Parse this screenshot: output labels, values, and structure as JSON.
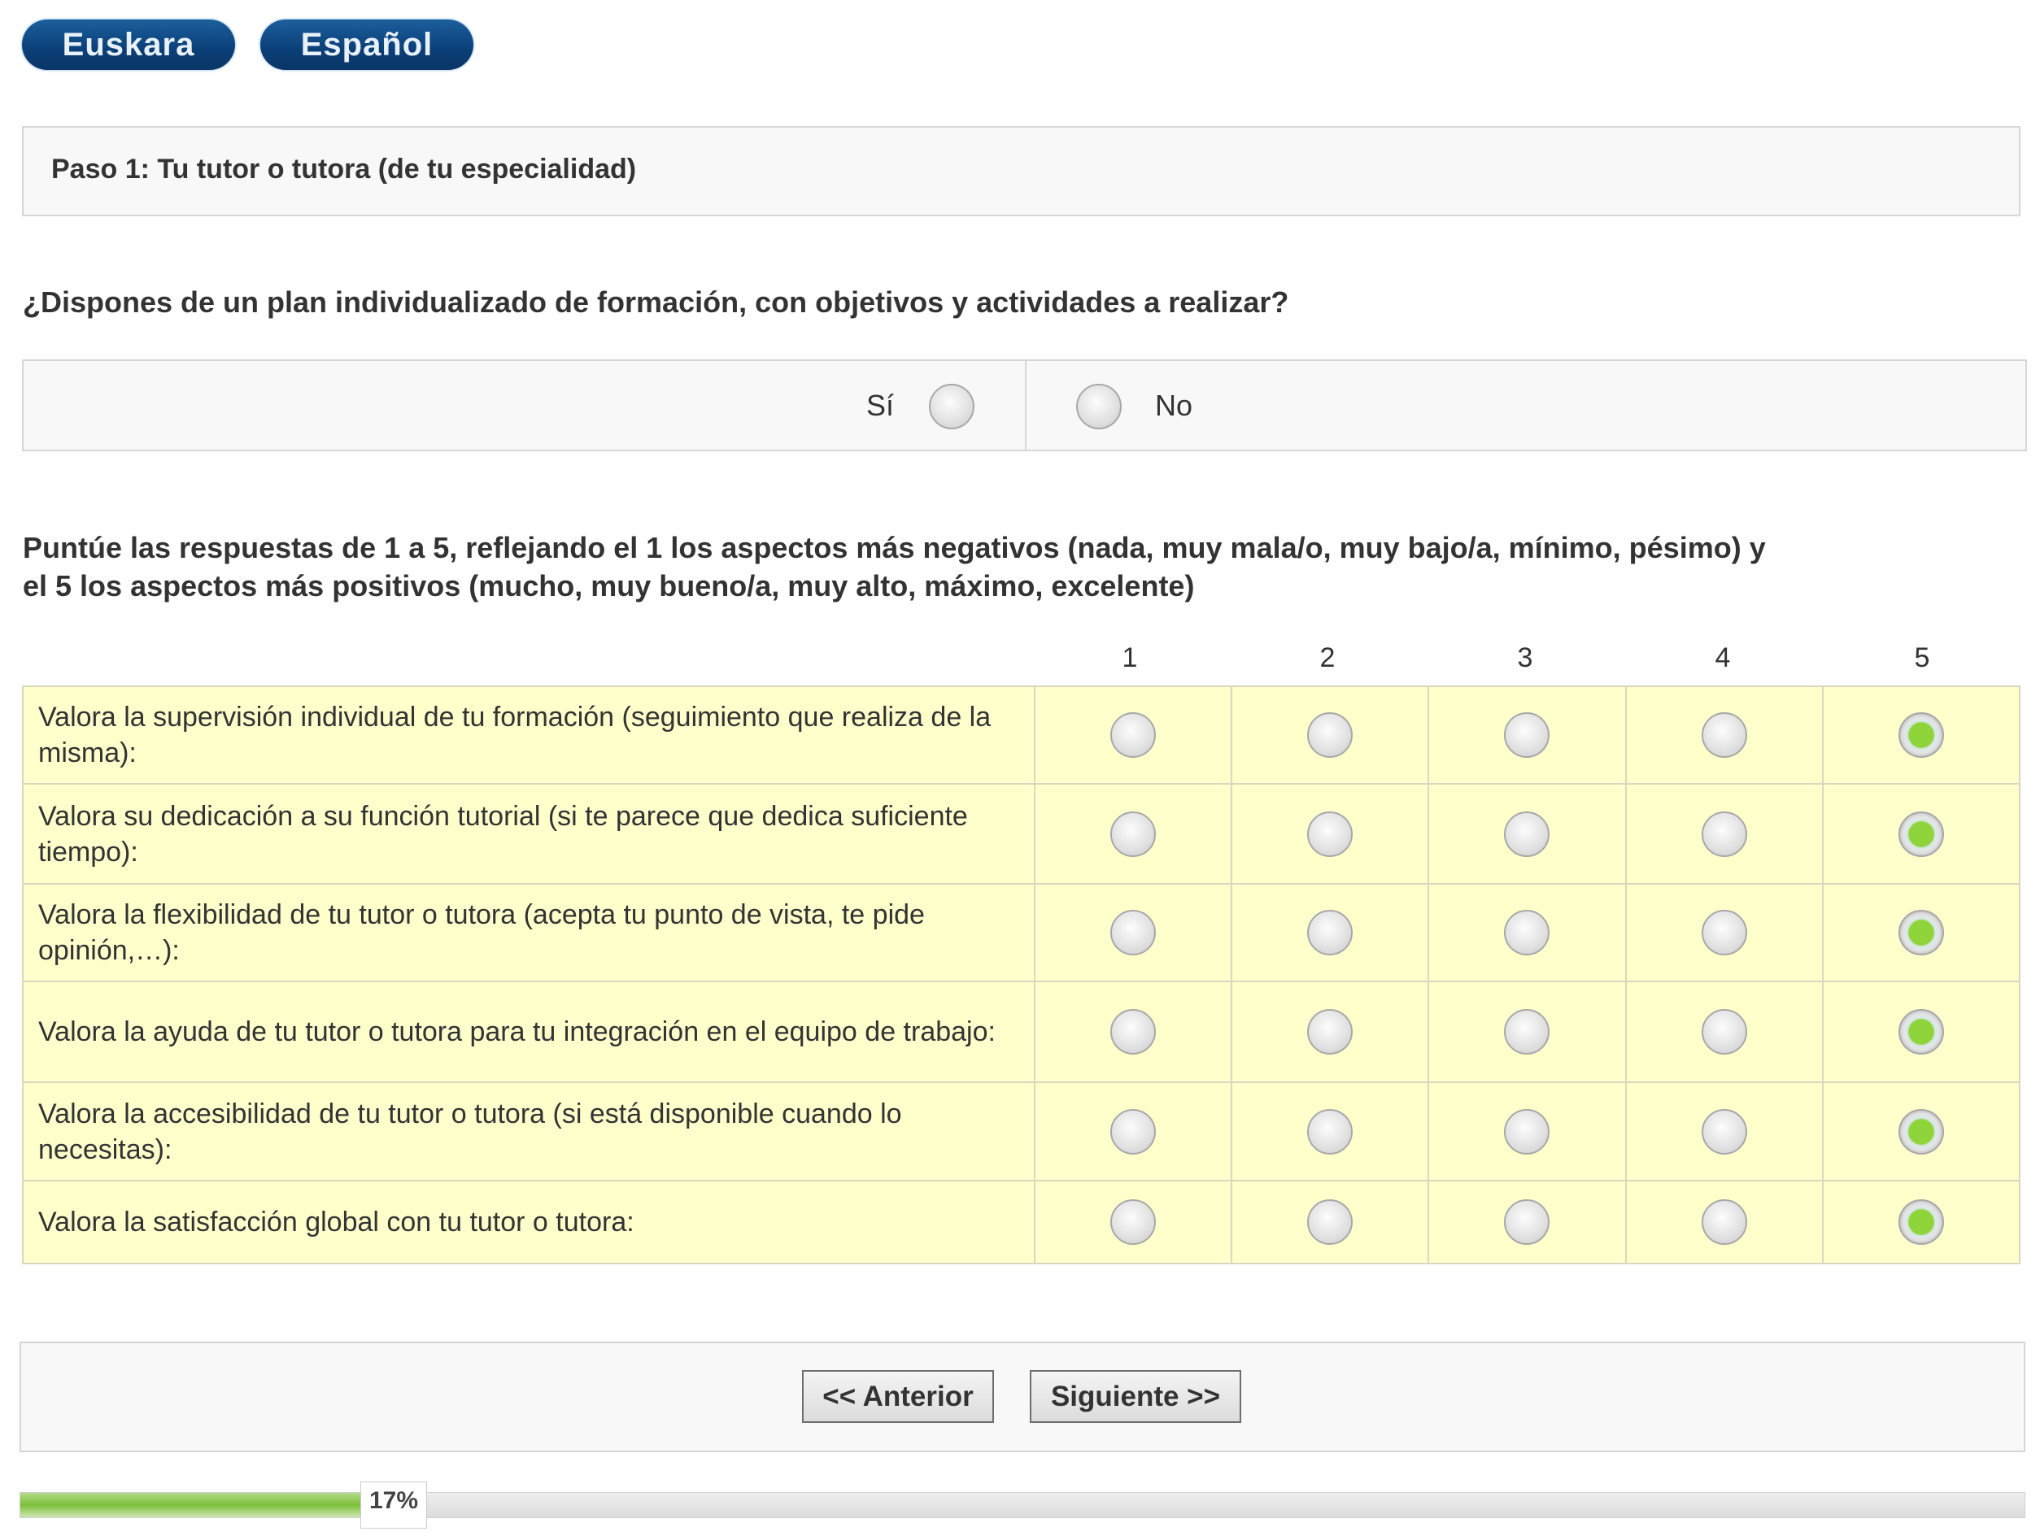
{
  "languages": [
    "Euskara",
    "Español"
  ],
  "step": {
    "title": "Paso 1: Tu tutor o tutora (de tu especialidad)"
  },
  "question1": {
    "text": "¿Dispones de un plan individualizado de formación, con objetivos y actividades a realizar?",
    "options": [
      {
        "label": "Sí",
        "selected": false
      },
      {
        "label": "No",
        "selected": false
      }
    ]
  },
  "instructions": {
    "line1": "Puntúe las respuestas de 1 a 5, reflejando el 1 los aspectos más negativos (nada, muy mala/o, muy bajo/a, mínimo, pésimo) y",
    "line2": "el 5 los aspectos más positivos (mucho, muy bueno/a, muy alto, máximo, excelente)"
  },
  "scale": {
    "columns": [
      "1",
      "2",
      "3",
      "4",
      "5"
    ],
    "rows": [
      {
        "label": "Valora la supervisión individual de tu formación (seguimiento que realiza de la misma):",
        "selected": 5
      },
      {
        "label": "Valora su dedicación a su función tutorial (si te parece que dedica suficiente tiempo):",
        "selected": 5
      },
      {
        "label": "Valora la flexibilidad de tu tutor o tutora (acepta tu punto de vista, te pide opinión,…):",
        "selected": 5
      },
      {
        "label": "Valora la ayuda de tu tutor o tutora para tu integración en el equipo de trabajo:",
        "selected": 5
      },
      {
        "label": "Valora la accesibilidad de tu tutor o tutora (si está disponible cuando lo necesitas):",
        "selected": 5
      },
      {
        "label": "Valora la satisfacción global con tu tutor o tutora:",
        "selected": 5
      }
    ]
  },
  "nav": {
    "prev": "<< Anterior",
    "next": "Siguiente >>"
  },
  "progress": {
    "percent": 17,
    "label": "17%"
  },
  "colors": {
    "lang_button": "#0b3f78",
    "table_bg": "#ffffcc",
    "selected_radio": "#8fd43a",
    "progress_fill": "#8cc63f"
  }
}
